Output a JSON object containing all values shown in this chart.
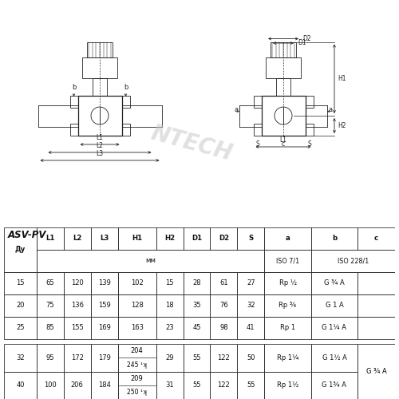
{
  "title": "ASV-PV",
  "watermark": "NTECH",
  "bg_color": "#ffffff",
  "table_headers": [
    "Ду",
    "L1",
    "L2",
    "L3",
    "H1",
    "H2",
    "D1",
    "D2",
    "S",
    "a",
    "b",
    "c"
  ],
  "rows": [
    [
      "15",
      "65",
      "120",
      "139",
      "102",
      "15",
      "28",
      "61",
      "27",
      "Rp ½",
      "G ¾ A",
      ""
    ],
    [
      "20",
      "75",
      "136",
      "159",
      "128",
      "18",
      "35",
      "76",
      "32",
      "Rp ¾",
      "G 1 A",
      ""
    ],
    [
      "25",
      "85",
      "155",
      "169",
      "163",
      "23",
      "45",
      "98",
      "41",
      "Rp 1",
      "G 1¼ A",
      ""
    ],
    [
      "32",
      "95",
      "172",
      "179",
      "204\n245 ¹ʞ",
      "29",
      "55",
      "122",
      "50",
      "Rp 1¼",
      "G 1½ A",
      "G ¾ A"
    ],
    [
      "40",
      "100",
      "206",
      "184",
      "209\n250 ¹ʞ",
      "31",
      "55",
      "122",
      "55",
      "Rp 1½",
      "G 1¾ A",
      ""
    ]
  ],
  "line_color": "#222222",
  "text_color": "#111111"
}
